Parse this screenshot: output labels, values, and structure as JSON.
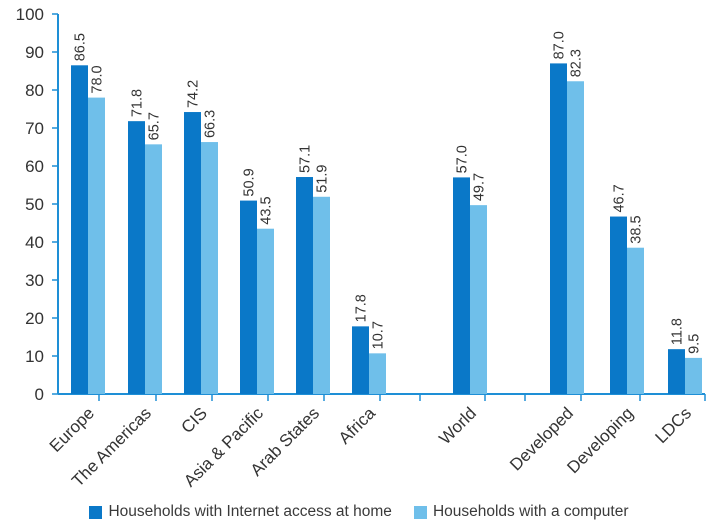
{
  "colors": {
    "internet": "#0a78c8",
    "computer": "#6fbfea",
    "axis": "#1e8fd6",
    "text": "#333333"
  },
  "legend": {
    "internet_label": "Households with Internet access at home",
    "computer_label": "Households with a computer"
  },
  "chart_data": {
    "type": "bar",
    "categories": [
      "Europe",
      "The Americas",
      "CIS",
      "Asia & Pacific",
      "Arab States",
      "Africa",
      "World",
      "Developed",
      "Developing",
      "LDCs"
    ],
    "series": [
      {
        "name": "Households with Internet access at home",
        "values": [
          86.5,
          71.8,
          74.2,
          50.9,
          57.1,
          17.8,
          57.0,
          87.0,
          46.7,
          11.8
        ]
      },
      {
        "name": "Households with a computer",
        "values": [
          78.0,
          65.7,
          66.3,
          43.5,
          51.9,
          10.7,
          49.7,
          82.3,
          38.5,
          9.5
        ]
      }
    ],
    "value_labels": [
      [
        "86.5",
        "71.8",
        "74.2",
        "50.9",
        "57.1",
        "17.8",
        "57.0",
        "87.0",
        "46.7",
        "11.8"
      ],
      [
        "78.0",
        "65.7",
        "66.3",
        "43.5",
        "51.9",
        "10.7",
        "49.7",
        "82.3",
        "38.5",
        "9.5"
      ]
    ],
    "yticks": [
      "0",
      "10",
      "20",
      "30",
      "40",
      "50",
      "60",
      "70",
      "80",
      "90",
      "100"
    ],
    "ylim": [
      0,
      100
    ],
    "grid": false,
    "legend_position": "bottom"
  }
}
